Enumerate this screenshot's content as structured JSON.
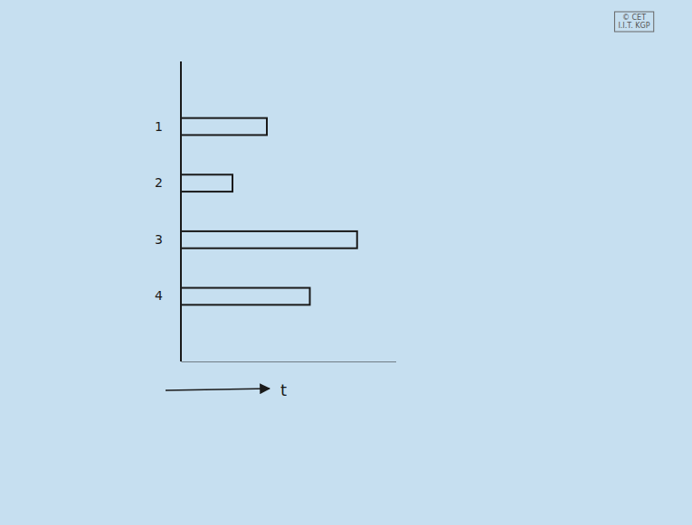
{
  "chart_data": {
    "type": "bar",
    "orientation": "horizontal",
    "categories": [
      "1",
      "2",
      "3",
      "4"
    ],
    "values": [
      100,
      60,
      205,
      150
    ],
    "color": "#1a1a1a",
    "xlim": [
      0,
      250
    ],
    "xticks": [],
    "tick_labels": "y",
    "x_label": "t",
    "annotations": [
      "© CET",
      "I.I.T. KGP"
    ]
  }
}
